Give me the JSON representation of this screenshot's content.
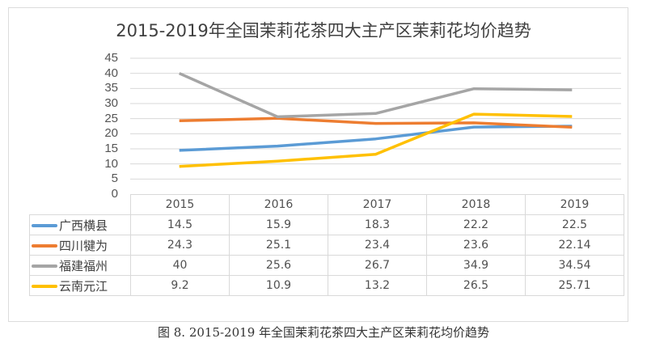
{
  "chart_data": {
    "type": "line",
    "title": "2015-2019年全国茉莉花茶四大主产区茉莉花均价趋势",
    "caption": "图 8. 2015-2019 年全国茉莉花茶四大主产区茉莉花均价趋势",
    "xlabel": "",
    "ylabel": "",
    "ylim": [
      0,
      45
    ],
    "yticks": [
      0,
      5,
      10,
      15,
      20,
      25,
      30,
      35,
      40,
      45
    ],
    "grid": true,
    "legend": "data-table",
    "categories": [
      "2015",
      "2016",
      "2017",
      "2018",
      "2019"
    ],
    "series": [
      {
        "name": "广西横县",
        "color": "#5b9bd5",
        "values": [
          14.5,
          15.9,
          18.3,
          22.2,
          22.5
        ],
        "labels": [
          "14.5",
          "15.9",
          "18.3",
          "22.2",
          "22.5"
        ]
      },
      {
        "name": "四川犍为",
        "color": "#ed7d31",
        "values": [
          24.3,
          25.1,
          23.4,
          23.6,
          22.14
        ],
        "labels": [
          "24.3",
          "25.1",
          "23.4",
          "23.6",
          "22.14"
        ]
      },
      {
        "name": "福建福州",
        "color": "#a5a5a5",
        "values": [
          40,
          25.6,
          26.7,
          34.9,
          34.54
        ],
        "labels": [
          "40",
          "25.6",
          "26.7",
          "34.9",
          "34.54"
        ]
      },
      {
        "name": "云南元江",
        "color": "#ffc000",
        "values": [
          9.2,
          10.9,
          13.2,
          26.5,
          25.71
        ],
        "labels": [
          "9.2",
          "10.9",
          "13.2",
          "26.5",
          "25.71"
        ]
      }
    ]
  }
}
